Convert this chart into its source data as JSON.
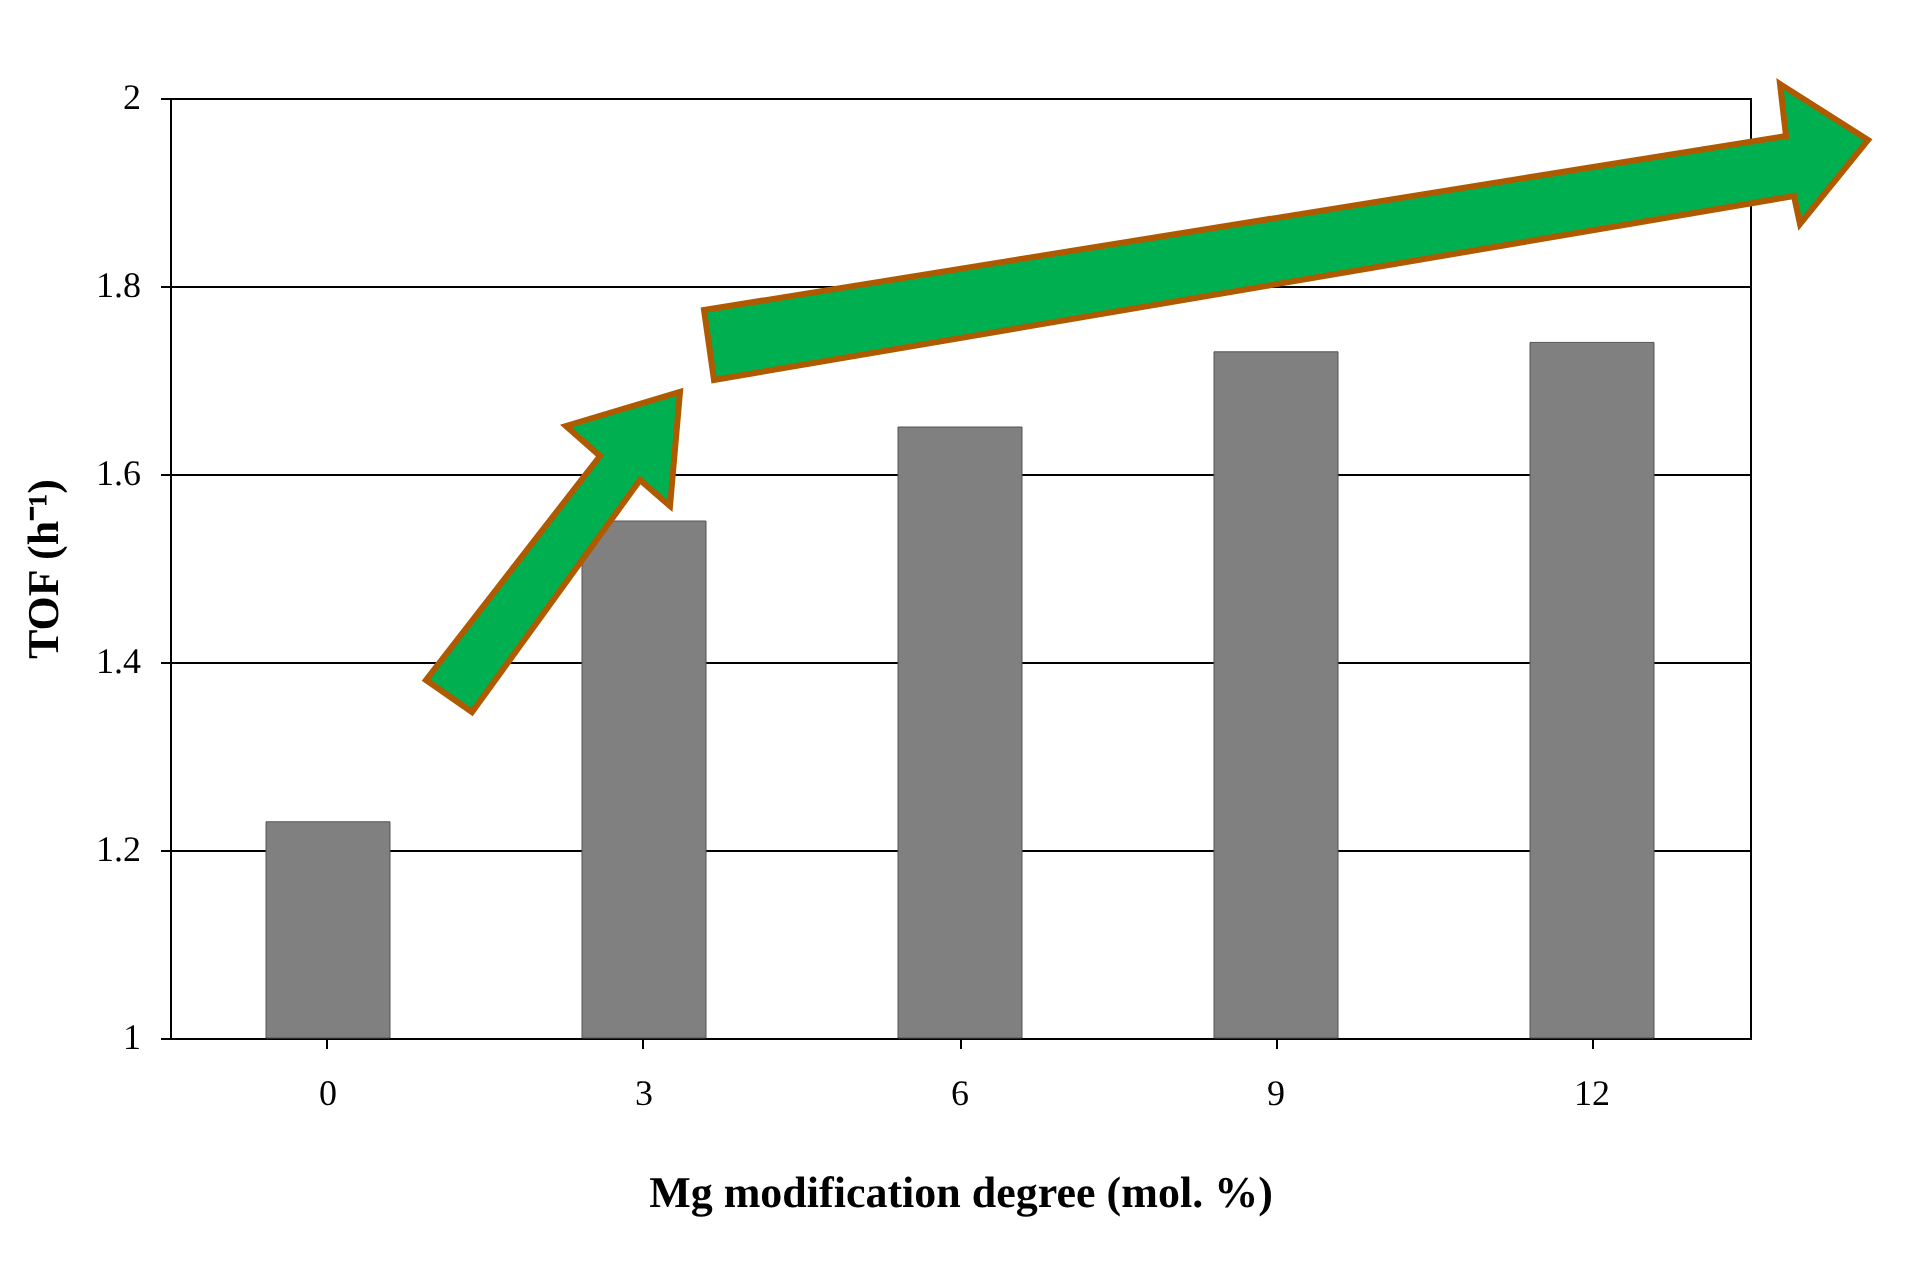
{
  "chart_data": {
    "type": "bar",
    "xlabel": "Mg modification degree (mol. %)",
    "ylabel": "TOF (h⁻¹)",
    "categories": [
      "0",
      "3",
      "6",
      "9",
      "12"
    ],
    "values": [
      1.23,
      1.55,
      1.65,
      1.73,
      1.74
    ],
    "color": "#808080",
    "ylim": [
      1,
      2
    ],
    "yticks": [
      1,
      1.2,
      1.4,
      1.6,
      1.8,
      2
    ],
    "grid": "y"
  }
}
